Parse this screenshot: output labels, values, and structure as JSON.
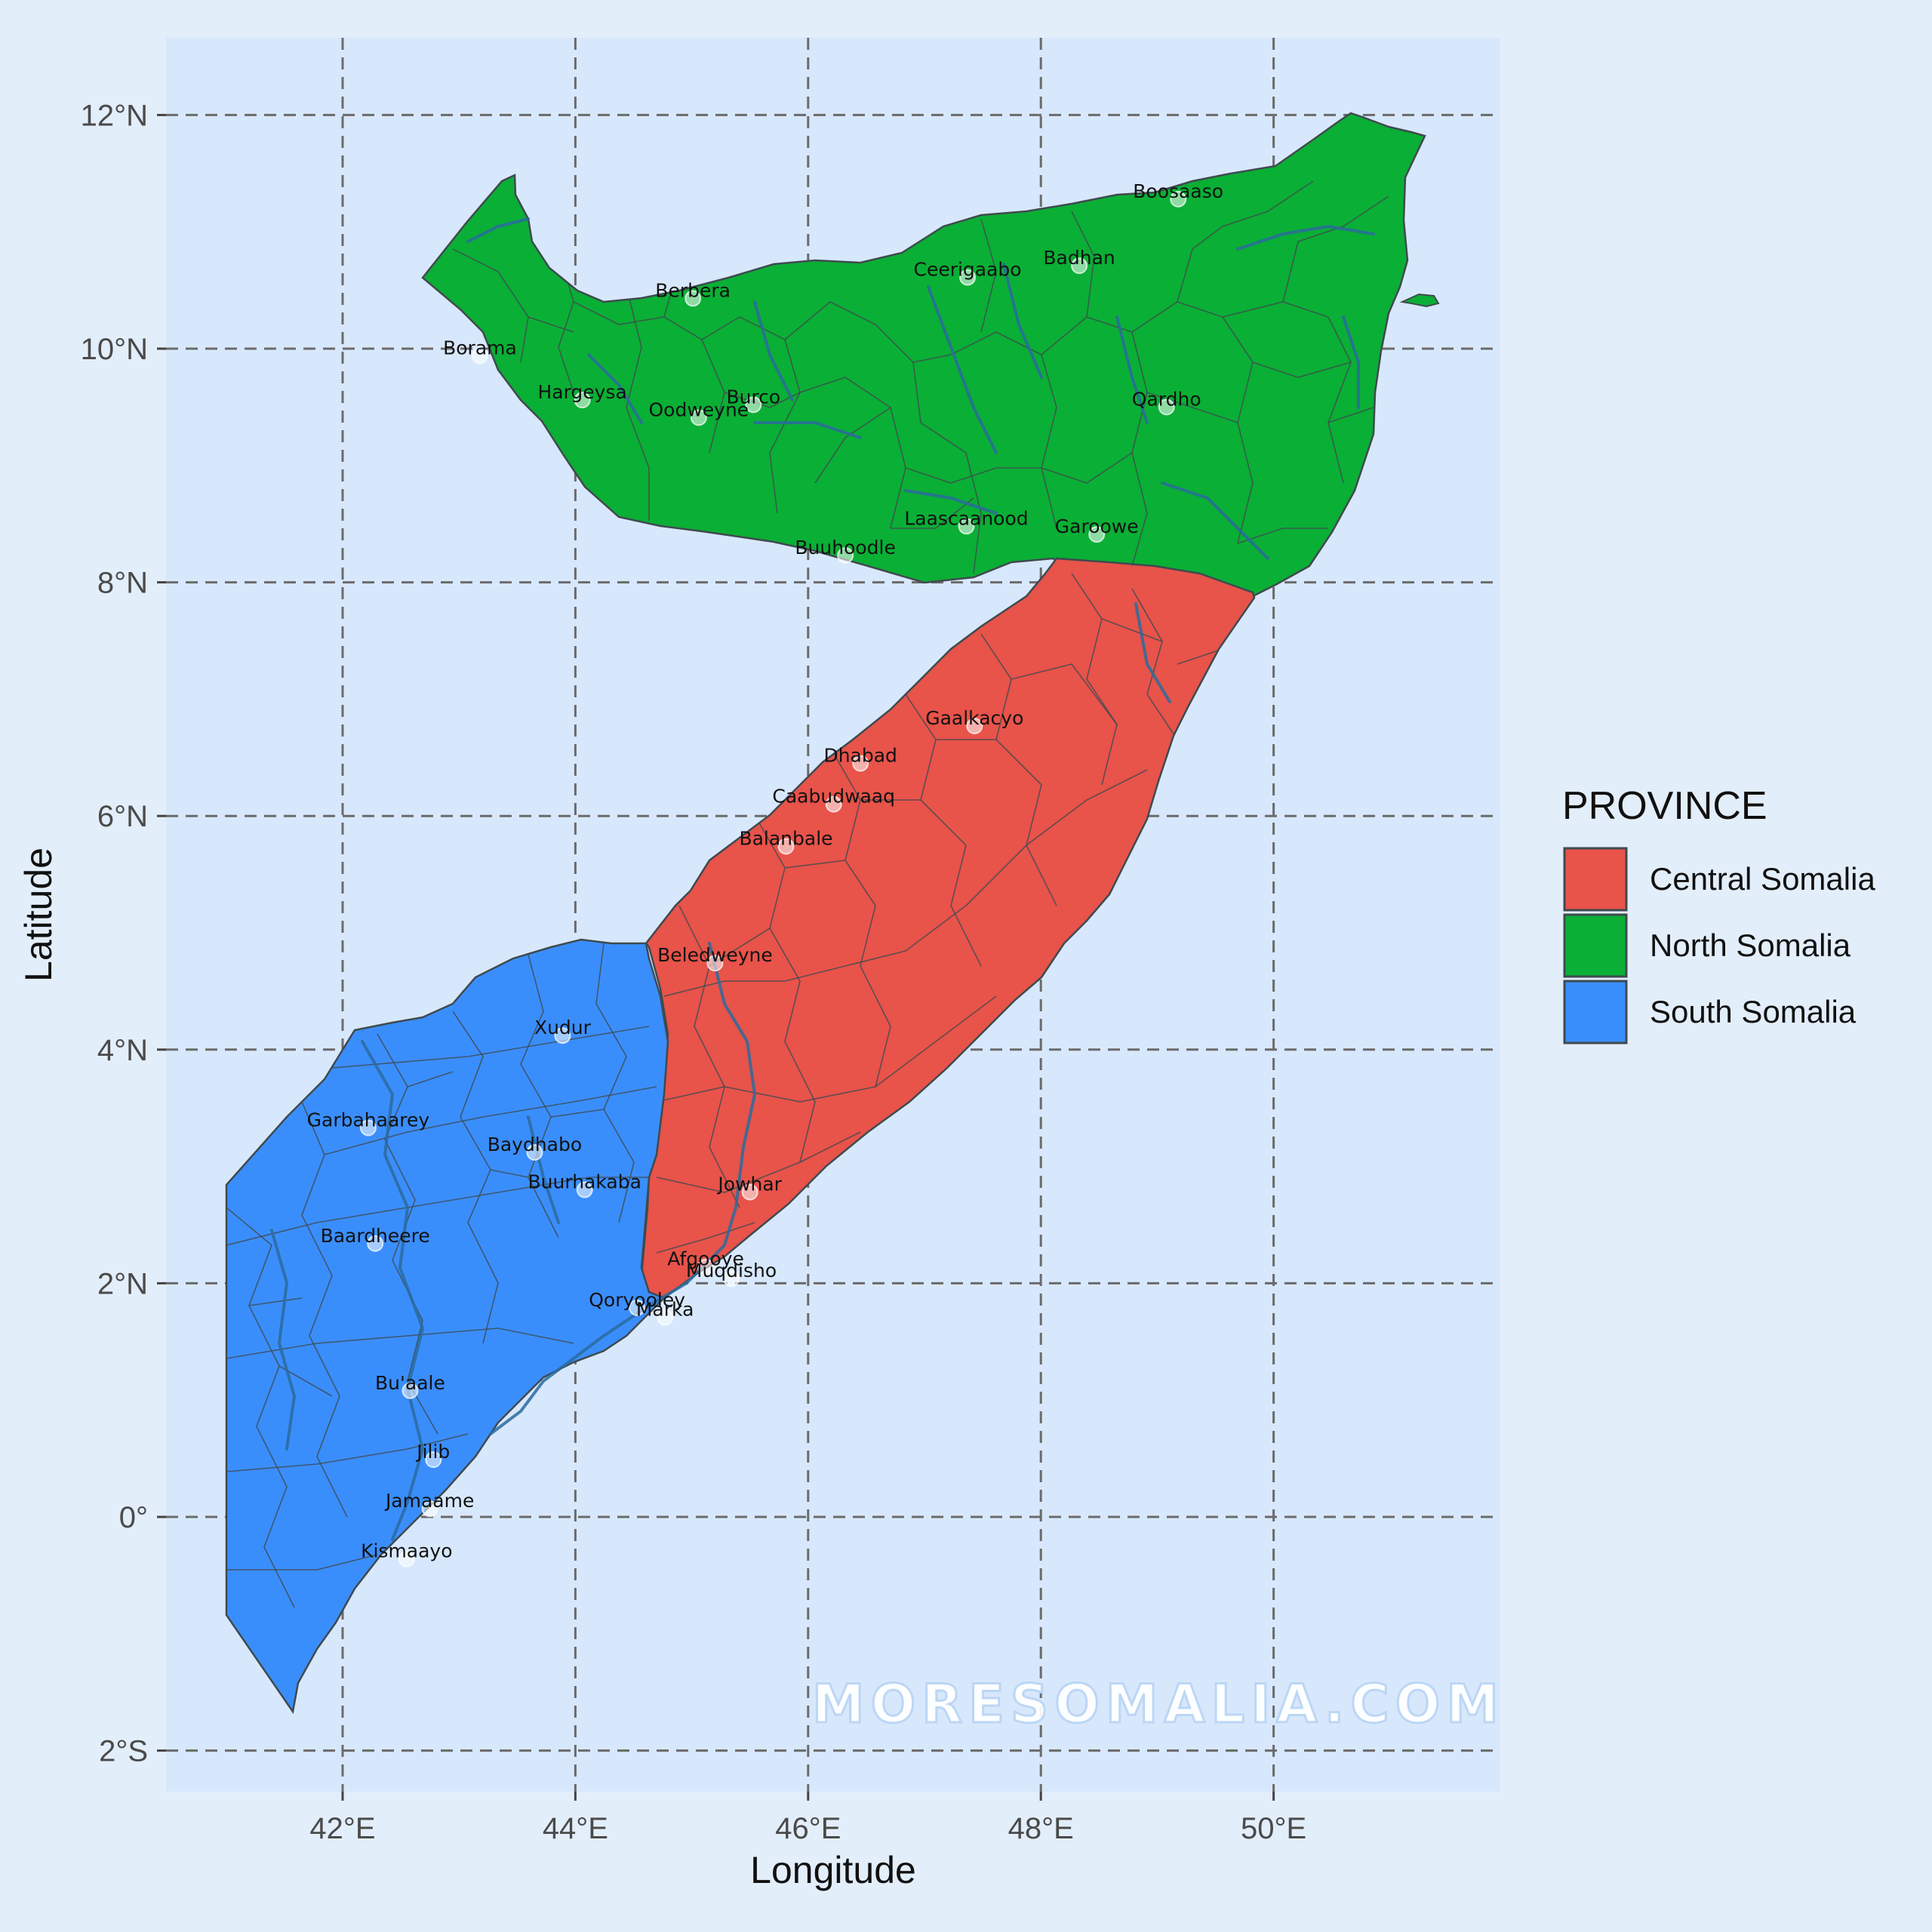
{
  "axes": {
    "xlabel": "Longitude",
    "ylabel": "Latitude",
    "x_ticks": [
      {
        "value": 42,
        "label": "42°E"
      },
      {
        "value": 44,
        "label": "44°E"
      },
      {
        "value": 46,
        "label": "46°E"
      },
      {
        "value": 48,
        "label": "48°E"
      },
      {
        "value": 50,
        "label": "50°E"
      }
    ],
    "y_ticks": [
      {
        "value": 12,
        "label": "12°N"
      },
      {
        "value": 10,
        "label": "10°N"
      },
      {
        "value": 8,
        "label": "8°N"
      },
      {
        "value": 6,
        "label": "6°N"
      },
      {
        "value": 4,
        "label": "4°N"
      },
      {
        "value": 2,
        "label": "2°N"
      },
      {
        "value": 0,
        "label": "0°"
      },
      {
        "value": -2,
        "label": "2°S"
      }
    ]
  },
  "legend": {
    "title": "PROVINCE",
    "items": [
      {
        "label": "Central Somalia",
        "color": "#e8534a"
      },
      {
        "label": "North Somalia",
        "color": "#0aaf35"
      },
      {
        "label": "South Somalia",
        "color": "#3a8efc"
      }
    ]
  },
  "watermark": "MORESOMALIA.COM",
  "colors": {
    "panel": "#d8e8fc",
    "background": "#e3eefb",
    "grid": "#6b6b6b",
    "river": "#2a6b9e",
    "border": "#3f4a4f"
  },
  "cities": [
    {
      "name": "Boosaaso",
      "lon": 49.18,
      "lat": 11.28
    },
    {
      "name": "Badhan",
      "lon": 48.33,
      "lat": 10.71
    },
    {
      "name": "Ceerigaabo",
      "lon": 47.37,
      "lat": 10.61
    },
    {
      "name": "Berbera",
      "lon": 45.01,
      "lat": 10.43
    },
    {
      "name": "Borama",
      "lon": 43.18,
      "lat": 9.94
    },
    {
      "name": "Hargeysa",
      "lon": 44.06,
      "lat": 9.56
    },
    {
      "name": "Burco",
      "lon": 45.53,
      "lat": 9.52
    },
    {
      "name": "Oodweyne",
      "lon": 45.06,
      "lat": 9.41
    },
    {
      "name": "Qardho",
      "lon": 49.08,
      "lat": 9.5
    },
    {
      "name": "Laascaanood",
      "lon": 47.36,
      "lat": 8.48
    },
    {
      "name": "Garoowe",
      "lon": 48.48,
      "lat": 8.41
    },
    {
      "name": "Buuhoodle",
      "lon": 46.32,
      "lat": 8.23
    },
    {
      "name": "Gaalkacyo",
      "lon": 47.43,
      "lat": 6.77
    },
    {
      "name": "Dhabad",
      "lon": 46.45,
      "lat": 6.45
    },
    {
      "name": "Caabudwaaq",
      "lon": 46.22,
      "lat": 6.1
    },
    {
      "name": "Balanbale",
      "lon": 45.81,
      "lat": 5.74
    },
    {
      "name": "Beledweyne",
      "lon": 45.2,
      "lat": 4.74
    },
    {
      "name": "Xudur",
      "lon": 43.89,
      "lat": 4.12
    },
    {
      "name": "Garbahaarey",
      "lon": 42.22,
      "lat": 3.33
    },
    {
      "name": "Baydhabo",
      "lon": 43.65,
      "lat": 3.12
    },
    {
      "name": "Buurhakaba",
      "lon": 44.08,
      "lat": 2.8
    },
    {
      "name": "Jowhar",
      "lon": 45.5,
      "lat": 2.78
    },
    {
      "name": "Baardheere",
      "lon": 42.28,
      "lat": 2.34
    },
    {
      "name": "Afgooye",
      "lon": 45.12,
      "lat": 2.14
    },
    {
      "name": "Muqdisho",
      "lon": 45.34,
      "lat": 2.04
    },
    {
      "name": "Qoryooley",
      "lon": 44.53,
      "lat": 1.79
    },
    {
      "name": "Marka",
      "lon": 44.77,
      "lat": 1.71
    },
    {
      "name": "Bu'aale",
      "lon": 42.58,
      "lat": 1.08
    },
    {
      "name": "Jilib",
      "lon": 42.78,
      "lat": 0.49
    },
    {
      "name": "Jamaame",
      "lon": 42.75,
      "lat": 0.07
    },
    {
      "name": "Kismaayo",
      "lon": 42.55,
      "lat": -0.36
    }
  ]
}
